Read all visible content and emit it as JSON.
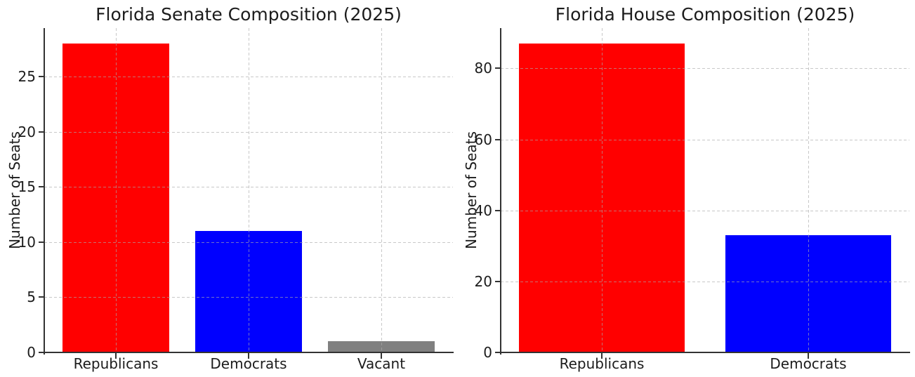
{
  "chart_data": [
    {
      "type": "bar",
      "title": "Florida Senate Composition (2025)",
      "xlabel": "",
      "ylabel": "Number of Seats",
      "categories": [
        "Republicans",
        "Democrats",
        "Vacant"
      ],
      "values": [
        28,
        11,
        1
      ],
      "bar_colors": [
        "#ff0000",
        "#0000ff",
        "#808080"
      ],
      "yticks": [
        0,
        5,
        10,
        15,
        20,
        25
      ],
      "ylim": [
        0,
        29.4
      ],
      "grid": "dashed on, both axes, drawn over bars",
      "legend_position": "none"
    },
    {
      "type": "bar",
      "title": "Florida House Composition (2025)",
      "xlabel": "",
      "ylabel": "Number of Seats",
      "categories": [
        "Republicans",
        "Democrats"
      ],
      "values": [
        87,
        33
      ],
      "bar_colors": [
        "#ff0000",
        "#0000ff"
      ],
      "yticks": [
        0,
        20,
        40,
        60,
        80
      ],
      "ylim": [
        0,
        91.35
      ],
      "grid": "dashed on, both axes, drawn over bars",
      "legend_position": "none"
    }
  ],
  "colors": {
    "background": "#ffffff",
    "spine": "#333333",
    "text": "#1c1c1c",
    "grid": "#cfcfcf",
    "republicans": "#ff0000",
    "democrats": "#0000ff",
    "vacant": "#808080"
  }
}
